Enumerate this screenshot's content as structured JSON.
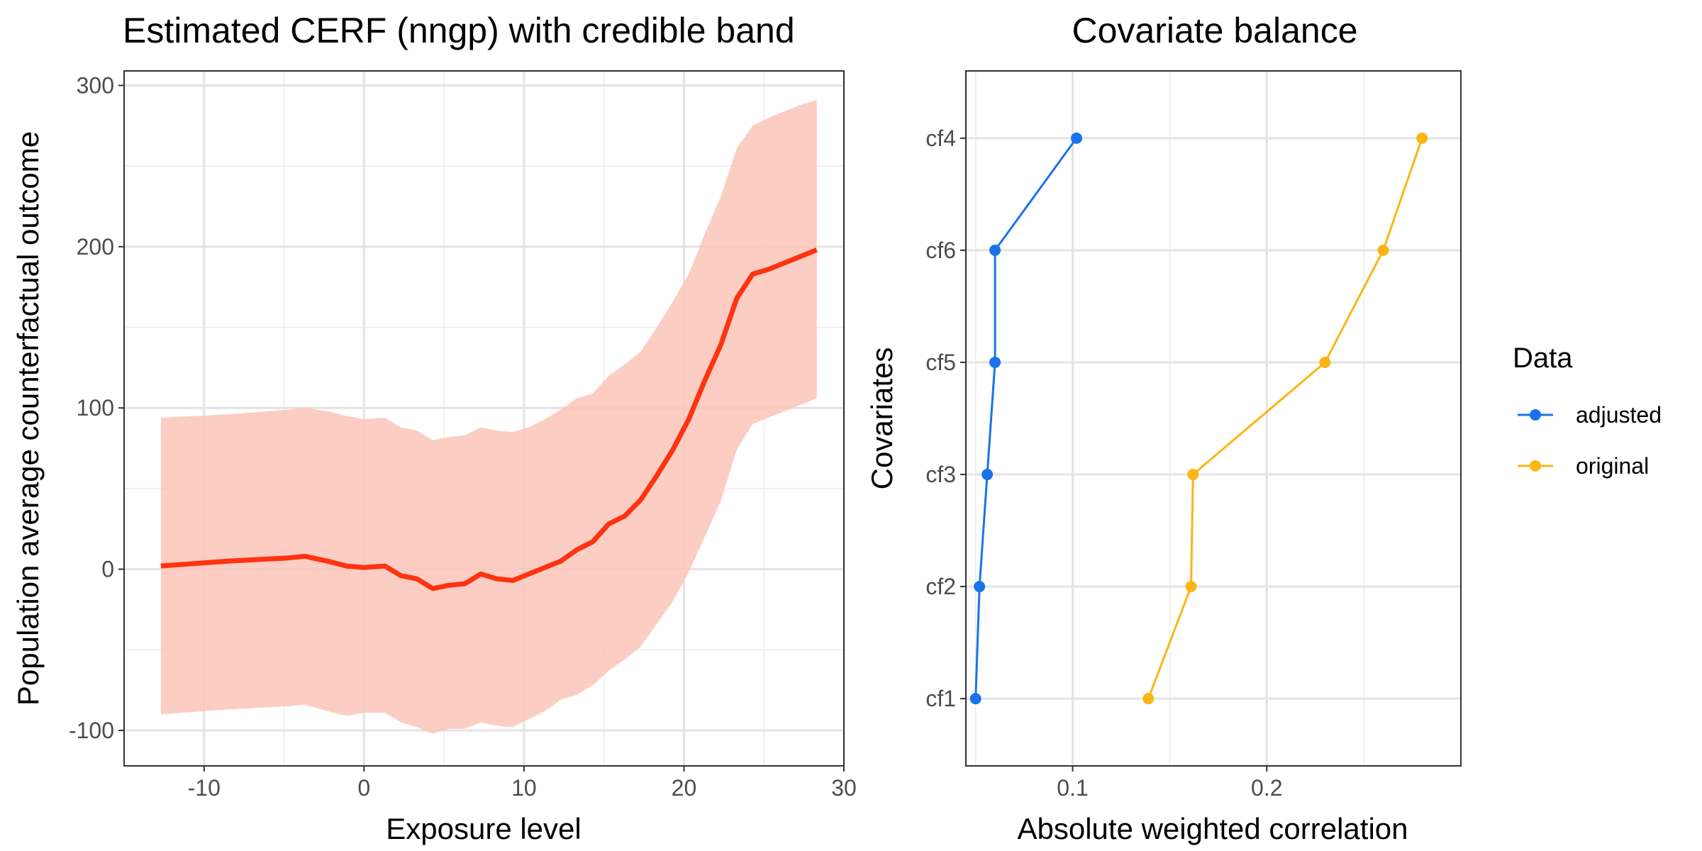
{
  "chart_data": [
    {
      "type": "line",
      "title": "Estimated CERF (nngp) with credible band",
      "xlabel": "Exposure level",
      "ylabel": "Population average counterfactual outcome",
      "xlim": [
        -15,
        30
      ],
      "ylim": [
        -122,
        309
      ],
      "x_ticks": [
        -10,
        0,
        10,
        20,
        30
      ],
      "y_ticks": [
        -100,
        0,
        100,
        200,
        300
      ],
      "grid": true,
      "colors": {
        "line": "#ff3311",
        "band": "#fcc6b8"
      },
      "series": [
        {
          "x": [
            -12.7,
            -8.5,
            -4.7,
            -3.7,
            -2.3,
            -1.1,
            0.0,
            1.3,
            2.3,
            3.3,
            4.3,
            5.3,
            6.3,
            7.3,
            8.3,
            9.3,
            10.3,
            11.3,
            12.3,
            13.3,
            14.3,
            15.3,
            16.3,
            17.3,
            18.3,
            19.3,
            20.3,
            21.3,
            22.3,
            23.3,
            24.3,
            25.3,
            26.3,
            27.3,
            28.3
          ],
          "y": [
            2,
            5,
            7,
            8,
            5,
            2,
            1,
            2,
            -4,
            -6,
            -12,
            -10,
            -9,
            -3,
            -6,
            -7,
            -3,
            1,
            5,
            12,
            17,
            28,
            33,
            43,
            58,
            74,
            93,
            117,
            139,
            168,
            183,
            186,
            190,
            194,
            198
          ]
        }
      ],
      "band": {
        "x": [
          -12.7,
          -8.5,
          -4.7,
          -3.7,
          -2.3,
          -1.1,
          0.0,
          1.3,
          2.3,
          3.3,
          4.3,
          5.3,
          6.3,
          7.3,
          8.3,
          9.3,
          10.3,
          11.3,
          12.3,
          13.3,
          14.3,
          15.3,
          16.3,
          17.3,
          18.3,
          19.3,
          20.3,
          21.3,
          22.3,
          23.3,
          24.3,
          25.3,
          26.3,
          27.3,
          28.3
        ],
        "lower": [
          -90,
          -87,
          -85,
          -84,
          -88,
          -91,
          -89,
          -89,
          -95,
          -98,
          -102,
          -99,
          -99,
          -95,
          -97,
          -98,
          -93,
          -88,
          -81,
          -78,
          -72,
          -63,
          -56,
          -48,
          -34,
          -20,
          -2,
          20,
          42,
          74,
          90,
          94,
          98,
          102,
          106
        ],
        "upper": [
          94,
          96,
          99,
          100,
          98,
          95,
          93,
          94,
          88,
          86,
          80,
          82,
          83,
          88,
          86,
          85,
          88,
          93,
          99,
          106,
          109,
          120,
          127,
          135,
          150,
          166,
          183,
          208,
          231,
          261,
          275,
          280,
          284,
          288,
          291
        ]
      }
    },
    {
      "type": "line",
      "title": "Covariate balance",
      "xlabel": "Absolute weighted correlation",
      "ylabel": "Covariates",
      "categories": [
        "cf1",
        "cf2",
        "cf3",
        "cf5",
        "cf6",
        "cf4"
      ],
      "x_ticks": [
        0.1,
        0.2
      ],
      "xlim": [
        0.045,
        0.3
      ],
      "grid": true,
      "legend": {
        "title": "Data",
        "position": "right"
      },
      "series": [
        {
          "name": "adjusted",
          "color": "#1a73e8",
          "values": [
            0.05,
            0.052,
            0.056,
            0.06,
            0.06,
            0.102
          ]
        },
        {
          "name": "original",
          "color": "#fbb615",
          "values": [
            0.139,
            0.161,
            0.162,
            0.23,
            0.26,
            0.28
          ]
        }
      ]
    }
  ]
}
